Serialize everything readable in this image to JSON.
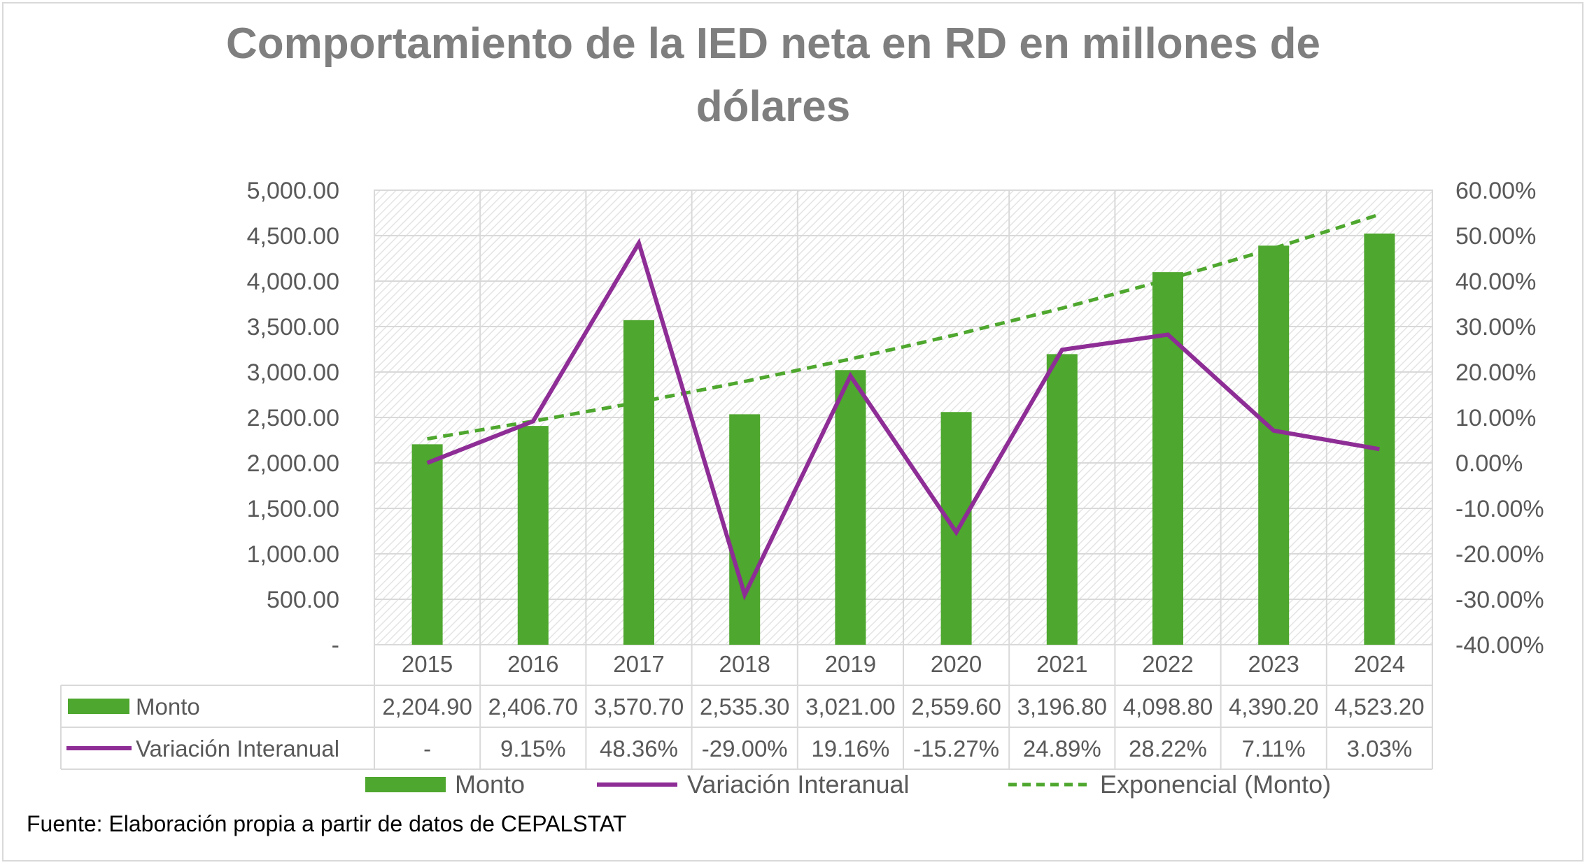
{
  "title_line1": "Comportamiento de la IED neta en RD en millones de",
  "title_line2": "dólares",
  "source": "Fuente: Elaboración propia a partir de datos de CEPALSTAT",
  "colors": {
    "bar": "#4ea72e",
    "line": "#8e2d96",
    "trend": "#4ea72e",
    "grid": "#d9d9d9",
    "text": "#595959",
    "title": "#7f7f7f"
  },
  "chart_data": {
    "type": "bar",
    "title": "Comportamiento de la IED neta en RD en millones de dólares",
    "categories": [
      "2015",
      "2016",
      "2017",
      "2018",
      "2019",
      "2020",
      "2021",
      "2022",
      "2023",
      "2024"
    ],
    "series": [
      {
        "name": "Monto",
        "type": "bar",
        "axis": "left",
        "values": [
          2204.9,
          2406.7,
          3570.7,
          2535.3,
          3021.0,
          2559.6,
          3196.8,
          4098.8,
          4390.2,
          4523.2
        ]
      },
      {
        "name": "Variación Interanual",
        "type": "line",
        "axis": "right",
        "values": [
          0,
          9.15,
          48.36,
          -29.0,
          19.16,
          -15.27,
          24.89,
          28.22,
          7.11,
          3.03
        ]
      },
      {
        "name": "Exponencial (Monto)",
        "type": "trendline-dashed",
        "axis": "left",
        "values": [
          2265,
          2459,
          2668,
          2896,
          3143,
          3411,
          3702,
          4018,
          4361,
          4733
        ]
      }
    ],
    "left_axis": {
      "min": 0,
      "max": 5000,
      "step": 500,
      "tick_labels": [
        "-",
        "500.00",
        "1,000.00",
        "1,500.00",
        "2,000.00",
        "2,500.00",
        "3,000.00",
        "3,500.00",
        "4,000.00",
        "4,500.00",
        "5,000.00"
      ]
    },
    "right_axis": {
      "min": -40,
      "max": 60,
      "step": 10,
      "tick_labels": [
        "-40.00%",
        "-30.00%",
        "-20.00%",
        "-10.00%",
        "0.00%",
        "10.00%",
        "20.00%",
        "30.00%",
        "40.00%",
        "50.00%",
        "60.00%"
      ]
    },
    "data_table": {
      "rows": [
        {
          "label": "Monto",
          "cells": [
            "2,204.90",
            "2,406.70",
            "3,570.70",
            "2,535.30",
            "3,021.00",
            "2,559.60",
            "3,196.80",
            "4,098.80",
            "4,390.20",
            "4,523.20"
          ]
        },
        {
          "label": "Variación Interanual",
          "cells": [
            "-",
            "9.15%",
            "48.36%",
            "-29.00%",
            "19.16%",
            "-15.27%",
            "24.89%",
            "28.22%",
            "7.11%",
            "3.03%"
          ]
        }
      ]
    },
    "legend": [
      "Monto",
      "Variación Interanual",
      "Exponencial (Monto)"
    ],
    "grid": true,
    "legend_position": "bottom"
  }
}
